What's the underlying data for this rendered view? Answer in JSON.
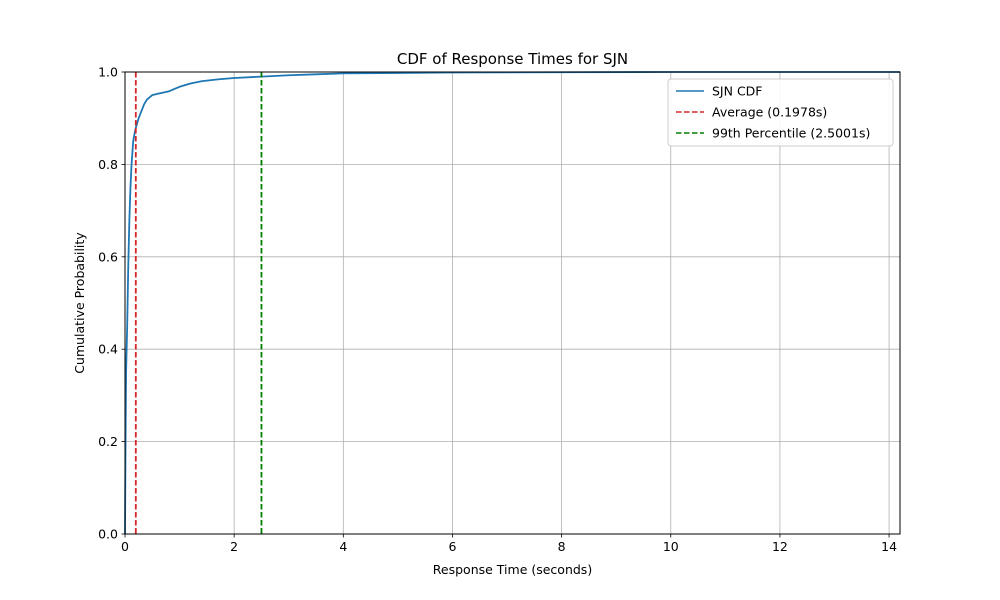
{
  "chart_data": {
    "type": "line",
    "title": "CDF of Response Times for SJN",
    "xlabel": "Response Time (seconds)",
    "ylabel": "Cumulative Probability",
    "xlim": [
      0,
      14.2
    ],
    "ylim": [
      0,
      1.0
    ],
    "xticks": [
      0,
      2,
      4,
      6,
      8,
      10,
      12,
      14
    ],
    "yticks": [
      0.0,
      0.2,
      0.4,
      0.6,
      0.8,
      1.0
    ],
    "xtick_labels": [
      "0",
      "2",
      "4",
      "6",
      "8",
      "10",
      "12",
      "14"
    ],
    "ytick_labels": [
      "0.0",
      "0.2",
      "0.4",
      "0.6",
      "0.8",
      "1.0"
    ],
    "grid": true,
    "legend_position": "top-right",
    "series": [
      {
        "name": "SJN CDF",
        "color": "#1f77b4",
        "style": "solid",
        "x": [
          0,
          0.01,
          0.02,
          0.04,
          0.06,
          0.08,
          0.1,
          0.12,
          0.15,
          0.18,
          0.2,
          0.25,
          0.3,
          0.35,
          0.4,
          0.5,
          0.6,
          0.8,
          0.9,
          1.0,
          1.2,
          1.4,
          1.7,
          2.0,
          2.5,
          3.0,
          3.5,
          4.0,
          5.0,
          6.0,
          8.0,
          10.0,
          12.0,
          14.2
        ],
        "y": [
          0,
          0.2,
          0.35,
          0.45,
          0.58,
          0.68,
          0.75,
          0.8,
          0.85,
          0.87,
          0.88,
          0.9,
          0.915,
          0.93,
          0.94,
          0.95,
          0.953,
          0.958,
          0.963,
          0.968,
          0.975,
          0.98,
          0.984,
          0.987,
          0.99,
          0.993,
          0.995,
          0.997,
          0.998,
          0.999,
          0.9995,
          1.0,
          1.0,
          1.0
        ]
      }
    ],
    "reference_lines": [
      {
        "name": "Average (0.1978s)",
        "x": 0.1978,
        "color": "#d62728",
        "style": "dashed"
      },
      {
        "name": "99th Percentile (2.5001s)",
        "x": 2.5001,
        "color": "#008000",
        "style": "dashed"
      }
    ]
  }
}
